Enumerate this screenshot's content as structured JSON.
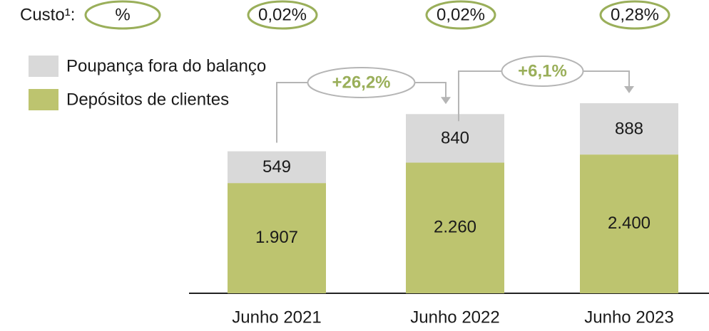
{
  "chart_data": {
    "type": "stacked_bar",
    "cost_label": "Custo¹:",
    "cost_unit": "%",
    "cost_labels": [
      "0,02%",
      "0,02%",
      "0,28%"
    ],
    "categories": [
      "Junho 2021",
      "Junho 2022",
      "Junho 2023"
    ],
    "series": [
      {
        "name": "Depósitos de clientes",
        "color": "#bdc46f",
        "values": [
          1907,
          2260,
          2400
        ],
        "value_labels": [
          "1.907",
          "2.260",
          "2.400"
        ]
      },
      {
        "name": "Poupança fora do balanço",
        "color": "#d9d9d9",
        "values": [
          549,
          840,
          888
        ]
      }
    ],
    "growth_labels": [
      "+26,2%",
      "+6,1%"
    ]
  }
}
